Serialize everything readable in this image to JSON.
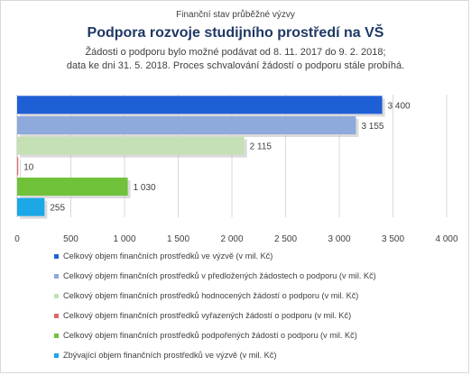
{
  "header": {
    "supertitle": "Finanční stav průběžné výzvy",
    "title": "Podpora rozvoje studijního prostředí na VŠ",
    "subtitle_line1": "Žádosti o podporu bylo možné  podávat od 8. 11. 2017 do 9. 2. 2018;",
    "subtitle_line2": "data ke dni 31. 5. 2018. Proces schvalování žádostí o podporu stále probíhá."
  },
  "chart_data": {
    "type": "bar",
    "orientation": "horizontal",
    "categories": [
      "Celkový objem finančních prostředků ve výzvě (v mil. Kč)",
      "Celkový objem finančních prostředků v předložených žádostech o podporu (v mil. Kč)",
      "Celkový objem finančních prostředků hodnocených žádostí o podporu (v mil. Kč)",
      "Celkový objem finančních prostředků vyřazených žádostí o podporu (v mil. Kč)",
      "Celkový objem finančních prostředků podpořených žádostí o podporu (v mil. Kč)",
      "Zbývající objem finančních prostředků ve výzvě (v mil. Kč)"
    ],
    "values": [
      3400,
      3155,
      2115,
      10,
      1030,
      255
    ],
    "value_labels": [
      "3 400",
      "3 155",
      "2 115",
      "10",
      "1 030",
      "255"
    ],
    "colors": [
      "#1f5fd6",
      "#8ea9db",
      "#c5e0b4",
      "#e06666",
      "#70c23a",
      "#1ca7e6"
    ],
    "xlim": [
      0,
      4000
    ],
    "x_ticks": [
      0,
      500,
      1000,
      1500,
      2000,
      2500,
      3000,
      3500,
      4000
    ],
    "x_tick_labels": [
      "0",
      "500",
      "1 000",
      "1 500",
      "2 000",
      "2 500",
      "3 000",
      "3 500",
      "4 000"
    ],
    "grid": true,
    "legend_position": "bottom"
  }
}
